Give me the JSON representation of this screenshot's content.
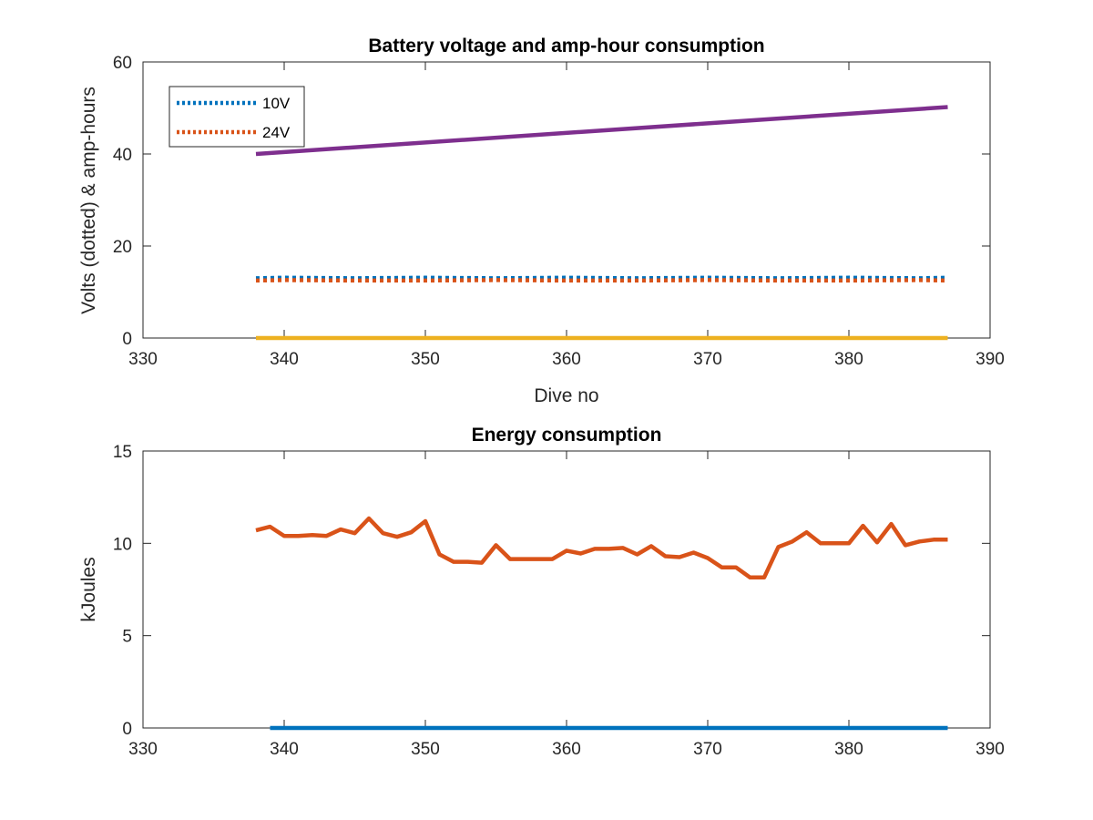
{
  "chart_data": [
    {
      "type": "line",
      "title": "Battery voltage and amp-hour consumption",
      "xlabel": "Dive no",
      "ylabel": "Volts (dotted) & amp-hours",
      "xlim": [
        330,
        390
      ],
      "ylim": [
        0,
        60
      ],
      "xticks": [
        "330",
        "340",
        "350",
        "360",
        "370",
        "380",
        "390"
      ],
      "yticks": [
        "0",
        "20",
        "40",
        "60"
      ],
      "legend_position": "top-left",
      "series": [
        {
          "name": "10V",
          "color": "#0072BD",
          "style": "dotted",
          "x": [
            338,
            340,
            345,
            350,
            355,
            360,
            365,
            370,
            375,
            380,
            385,
            387
          ],
          "y": [
            13.0,
            13.1,
            13.0,
            13.1,
            13.0,
            13.1,
            13.0,
            13.1,
            13.0,
            13.1,
            13.0,
            13.1
          ]
        },
        {
          "name": "24V",
          "color": "#D95319",
          "style": "dotted",
          "x": [
            338,
            340,
            345,
            350,
            355,
            360,
            365,
            370,
            375,
            380,
            385,
            387
          ],
          "y": [
            12.5,
            12.6,
            12.5,
            12.5,
            12.6,
            12.5,
            12.5,
            12.6,
            12.5,
            12.5,
            12.6,
            12.5
          ]
        },
        {
          "color": "#EDB120",
          "style": "solid",
          "x": [
            338,
            387
          ],
          "y": [
            0,
            0
          ]
        },
        {
          "color": "#7E2F8E",
          "style": "solid",
          "x": [
            338,
            387
          ],
          "y": [
            40,
            50.2
          ]
        }
      ]
    },
    {
      "type": "line",
      "title": "Energy consumption",
      "xlabel": "",
      "ylabel": "kJoules",
      "xlim": [
        330,
        390
      ],
      "ylim": [
        0,
        15
      ],
      "xticks": [
        "330",
        "340",
        "350",
        "360",
        "370",
        "380",
        "390"
      ],
      "yticks": [
        "0",
        "5",
        "10",
        "15"
      ],
      "series": [
        {
          "color": "#0072BD",
          "style": "solid",
          "x": [
            339,
            387
          ],
          "y": [
            0,
            0
          ]
        },
        {
          "color": "#D95319",
          "style": "solid",
          "x": [
            338,
            339,
            340,
            341,
            342,
            343,
            344,
            345,
            346,
            347,
            348,
            349,
            350,
            351,
            352,
            353,
            354,
            355,
            356,
            357,
            358,
            359,
            360,
            361,
            362,
            363,
            364,
            365,
            366,
            367,
            368,
            369,
            370,
            371,
            372,
            373,
            374,
            375,
            376,
            377,
            378,
            379,
            380,
            381,
            382,
            383,
            384,
            385,
            386,
            387
          ],
          "y": [
            10.7,
            10.9,
            10.4,
            10.4,
            10.45,
            10.4,
            10.75,
            10.55,
            11.35,
            10.55,
            10.35,
            10.6,
            11.2,
            9.4,
            9.0,
            9.0,
            8.95,
            9.9,
            9.15,
            9.15,
            9.15,
            9.15,
            9.6,
            9.45,
            9.7,
            9.7,
            9.75,
            9.4,
            9.85,
            9.3,
            9.25,
            9.5,
            9.2,
            8.7,
            8.7,
            8.15,
            8.15,
            9.8,
            10.1,
            10.6,
            10.0,
            10.0,
            10.0,
            10.95,
            10.05,
            11.05,
            9.9,
            10.1,
            10.2,
            10.2
          ]
        }
      ]
    }
  ]
}
